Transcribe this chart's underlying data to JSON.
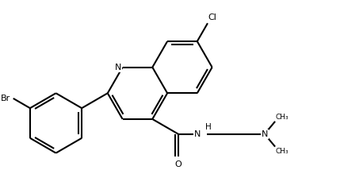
{
  "bg_color": "#ffffff",
  "lc": "#000000",
  "lw": 1.5,
  "fs": 8.0,
  "figsize": [
    4.34,
    2.14
  ],
  "dpi": 100,
  "BL": 0.42,
  "xlim": [
    -0.1,
    4.5
  ],
  "ylim": [
    -0.1,
    2.2
  ]
}
